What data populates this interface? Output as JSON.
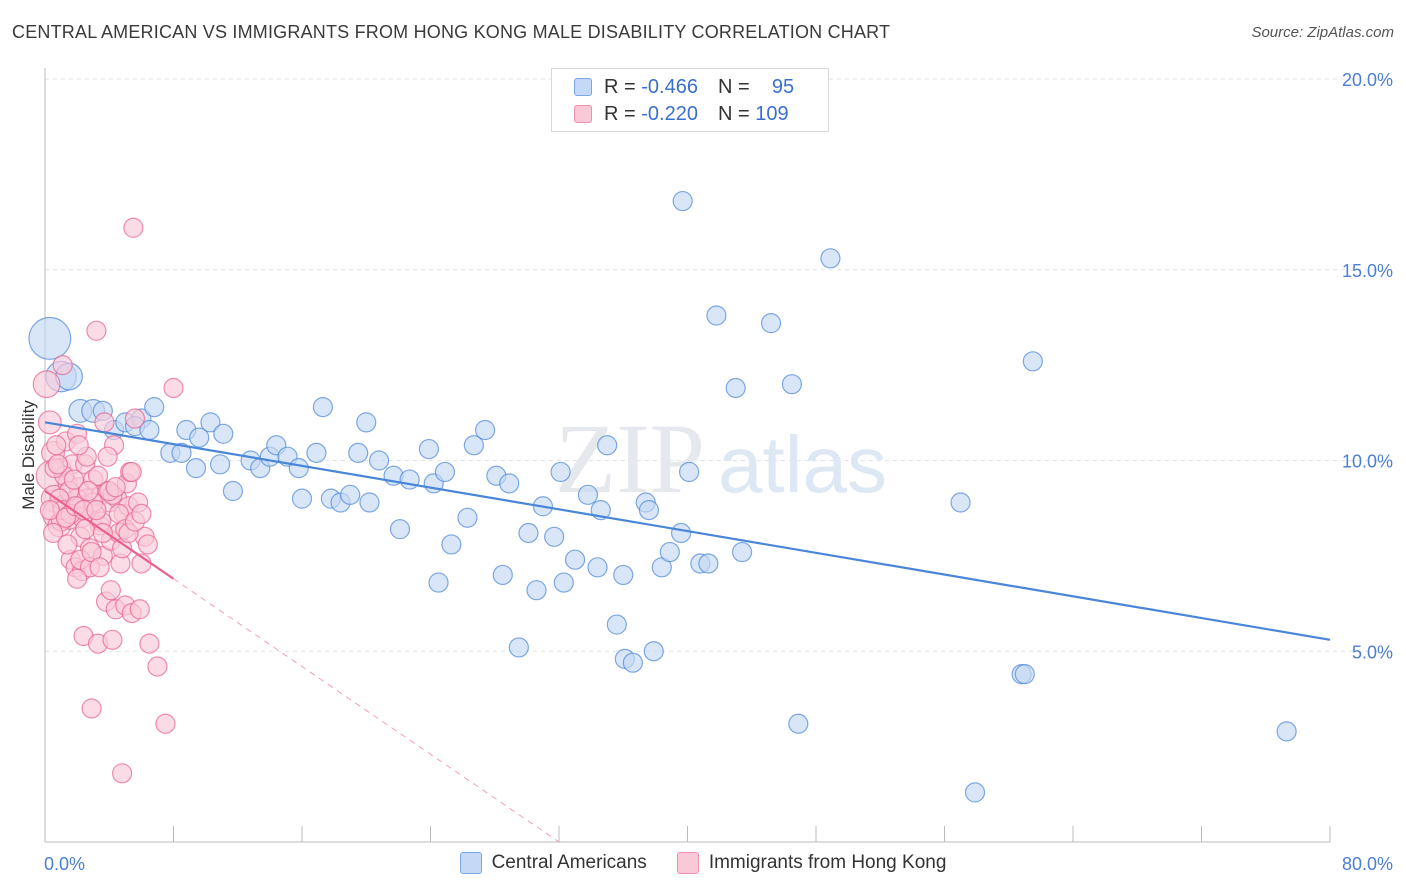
{
  "title": "CENTRAL AMERICAN VS IMMIGRANTS FROM HONG KONG MALE DISABILITY CORRELATION CHART",
  "source": "Source: ZipAtlas.com",
  "watermark": {
    "zip": "ZIP",
    "atlas": "atlas"
  },
  "legend": {
    "r_label": "R =",
    "n_label": "N =",
    "rows": [
      {
        "r": "-0.466",
        "n": "95",
        "color": "#7aa6e8",
        "fill": "#c5d8f5"
      },
      {
        "r": "-0.220",
        "n": "109",
        "color": "#f08fb0",
        "fill": "#f9c9d8"
      }
    ]
  },
  "bottom_legend": [
    {
      "label": "Central Americans",
      "fill": "#c5d8f5",
      "stroke": "#7aa6e8"
    },
    {
      "label": "Immigrants from Hong Kong",
      "fill": "#f9c9d8",
      "stroke": "#f08fb0"
    }
  ],
  "chart_data": {
    "type": "scatter",
    "title": "CENTRAL AMERICAN VS IMMIGRANTS FROM HONG KONG MALE DISABILITY CORRELATION CHART",
    "xlabel": "",
    "ylabel": "Male Disability",
    "xlim": [
      0,
      80
    ],
    "ylim": [
      0,
      20
    ],
    "x_tick_labels": [
      "0.0%",
      "80.0%"
    ],
    "y_tick_labels": [
      "5.0%",
      "10.0%",
      "15.0%",
      "20.0%"
    ],
    "y_ticks": [
      5,
      10,
      15,
      20
    ],
    "grid": "horizontal dashed",
    "legend_position": "top-center",
    "series": [
      {
        "name": "Central Americans",
        "color": "#4a86d8",
        "fill": "#c5d8f5",
        "trend": {
          "x0": 0,
          "y0": 11.0,
          "x1": 80,
          "y1": 5.3
        },
        "points": [
          [
            0.3,
            13.2,
            2.2
          ],
          [
            1.0,
            12.2,
            1.6
          ],
          [
            1.5,
            12.2,
            1.4
          ],
          [
            2.2,
            11.3,
            1.2
          ],
          [
            3.0,
            11.3,
            1.2
          ],
          [
            3.6,
            11.3,
            1.0
          ],
          [
            4.3,
            10.8,
            1.0
          ],
          [
            5.0,
            11.0,
            1.0
          ],
          [
            6.0,
            11.1,
            1.0
          ],
          [
            6.8,
            11.4,
            1.0
          ],
          [
            5.6,
            10.9,
            1.0
          ],
          [
            6.5,
            10.8,
            1.0
          ],
          [
            7.8,
            10.2,
            1.0
          ],
          [
            8.5,
            10.2,
            1.0
          ],
          [
            8.8,
            10.8,
            1.0
          ],
          [
            9.6,
            10.6,
            1.0
          ],
          [
            10.3,
            11.0,
            1.0
          ],
          [
            9.4,
            9.8,
            1.0
          ],
          [
            11.1,
            10.7,
            1.0
          ],
          [
            11.7,
            9.2,
            1.0
          ],
          [
            10.9,
            9.9,
            1.0
          ],
          [
            12.8,
            10.0,
            1.0
          ],
          [
            13.4,
            9.8,
            1.0
          ],
          [
            14.0,
            10.1,
            1.0
          ],
          [
            14.4,
            10.4,
            1.0
          ],
          [
            15.1,
            10.1,
            1.0
          ],
          [
            15.8,
            9.8,
            1.0
          ],
          [
            16.9,
            10.2,
            1.0
          ],
          [
            17.3,
            11.4,
            1.0
          ],
          [
            16.0,
            9.0,
            1.0
          ],
          [
            17.8,
            9.0,
            1.0
          ],
          [
            18.4,
            8.9,
            1.0
          ],
          [
            19.0,
            9.1,
            1.0
          ],
          [
            19.5,
            10.2,
            1.0
          ],
          [
            20.2,
            8.9,
            1.0
          ],
          [
            20.0,
            11.0,
            1.0
          ],
          [
            20.8,
            10.0,
            1.0
          ],
          [
            21.7,
            9.6,
            1.0
          ],
          [
            22.1,
            8.2,
            1.0
          ],
          [
            22.7,
            9.5,
            1.0
          ],
          [
            23.9,
            10.3,
            1.0
          ],
          [
            24.2,
            9.4,
            1.0
          ],
          [
            24.5,
            6.8,
            1.0
          ],
          [
            24.9,
            9.7,
            1.0
          ],
          [
            25.3,
            7.8,
            1.0
          ],
          [
            26.3,
            8.5,
            1.0
          ],
          [
            26.7,
            10.4,
            1.0
          ],
          [
            27.4,
            10.8,
            1.0
          ],
          [
            28.1,
            9.6,
            1.0
          ],
          [
            28.5,
            7.0,
            1.0
          ],
          [
            28.9,
            9.4,
            1.0
          ],
          [
            29.5,
            5.1,
            1.0
          ],
          [
            30.1,
            8.1,
            1.0
          ],
          [
            30.6,
            6.6,
            1.0
          ],
          [
            31.0,
            8.8,
            1.0
          ],
          [
            31.7,
            8.0,
            1.0
          ],
          [
            32.1,
            9.7,
            1.0
          ],
          [
            32.3,
            6.8,
            1.0
          ],
          [
            33.0,
            7.4,
            1.0
          ],
          [
            33.8,
            9.1,
            1.0
          ],
          [
            34.4,
            7.2,
            1.0
          ],
          [
            34.6,
            8.7,
            1.0
          ],
          [
            35.0,
            10.4,
            1.0
          ],
          [
            35.6,
            5.7,
            1.0
          ],
          [
            36.0,
            7.0,
            1.0
          ],
          [
            36.1,
            4.8,
            1.0
          ],
          [
            36.6,
            4.7,
            1.0
          ],
          [
            37.4,
            8.9,
            1.0
          ],
          [
            37.6,
            8.7,
            1.0
          ],
          [
            37.9,
            5.0,
            1.0
          ],
          [
            38.4,
            7.2,
            1.0
          ],
          [
            38.9,
            7.6,
            1.0
          ],
          [
            39.6,
            8.1,
            1.0
          ],
          [
            39.7,
            16.8,
            1.0
          ],
          [
            40.1,
            9.7,
            1.0
          ],
          [
            40.8,
            7.3,
            1.0
          ],
          [
            41.3,
            7.3,
            1.0
          ],
          [
            41.8,
            13.8,
            1.0
          ],
          [
            43.0,
            11.9,
            1.0
          ],
          [
            43.4,
            7.6,
            1.0
          ],
          [
            45.2,
            13.6,
            1.0
          ],
          [
            46.5,
            12.0,
            1.0
          ],
          [
            46.9,
            3.1,
            1.0
          ],
          [
            48.9,
            15.3,
            1.0
          ],
          [
            57.0,
            8.9,
            1.0
          ],
          [
            57.9,
            1.3,
            1.0
          ],
          [
            60.8,
            4.4,
            1.0
          ],
          [
            61.0,
            4.4,
            1.0
          ],
          [
            61.5,
            12.6,
            1.0
          ],
          [
            77.3,
            2.9,
            1.0
          ]
        ]
      },
      {
        "name": "Immigrants from Hong Kong",
        "color": "#e8608f",
        "fill": "#f9c9d8",
        "trend": {
          "x0": 0,
          "y0": 9.2,
          "x1": 8,
          "y1": 6.9
        },
        "trend_ext": {
          "x0": 8,
          "y0": 6.9,
          "x1": 32,
          "y1": 0
        },
        "points": [
          [
            0.1,
            12.0,
            1.4
          ],
          [
            0.3,
            11.0,
            1.2
          ],
          [
            0.5,
            10.2,
            1.2
          ],
          [
            0.4,
            9.6,
            1.6
          ],
          [
            0.6,
            9.0,
            1.4
          ],
          [
            0.8,
            8.6,
            1.6
          ],
          [
            0.9,
            8.3,
            1.2
          ],
          [
            1.0,
            9.8,
            1.0
          ],
          [
            1.1,
            12.5,
            1.0
          ],
          [
            1.2,
            8.8,
            1.2
          ],
          [
            1.3,
            10.5,
            1.0
          ],
          [
            1.4,
            9.4,
            1.0
          ],
          [
            1.5,
            8.5,
            1.2
          ],
          [
            1.6,
            7.4,
            1.0
          ],
          [
            1.7,
            9.9,
            1.0
          ],
          [
            1.8,
            8.7,
            1.0
          ],
          [
            1.9,
            7.2,
            1.0
          ],
          [
            2.0,
            10.7,
            1.0
          ],
          [
            2.1,
            9.3,
            1.0
          ],
          [
            2.2,
            8.0,
            1.0
          ],
          [
            2.3,
            7.1,
            1.0
          ],
          [
            2.4,
            5.4,
            1.0
          ],
          [
            2.5,
            9.9,
            1.0
          ],
          [
            2.6,
            9.0,
            1.0
          ],
          [
            2.7,
            8.8,
            1.0
          ],
          [
            2.8,
            7.7,
            1.0
          ],
          [
            2.9,
            3.5,
            1.0
          ],
          [
            3.0,
            9.5,
            1.0
          ],
          [
            3.1,
            8.6,
            1.0
          ],
          [
            3.2,
            13.4,
            1.0
          ],
          [
            3.3,
            5.2,
            1.0
          ],
          [
            3.4,
            8.3,
            1.0
          ],
          [
            3.5,
            9.1,
            1.0
          ],
          [
            3.6,
            7.5,
            1.0
          ],
          [
            3.7,
            11.0,
            1.0
          ],
          [
            3.8,
            6.3,
            1.0
          ],
          [
            3.9,
            9.2,
            1.0
          ],
          [
            4.0,
            8.9,
            1.0
          ],
          [
            4.1,
            7.9,
            1.0
          ],
          [
            4.2,
            5.3,
            1.0
          ],
          [
            4.3,
            10.4,
            1.0
          ],
          [
            4.4,
            6.1,
            1.0
          ],
          [
            4.5,
            9.0,
            1.0
          ],
          [
            4.6,
            8.1,
            1.0
          ],
          [
            4.7,
            7.3,
            1.0
          ],
          [
            4.8,
            1.8,
            1.0
          ],
          [
            4.9,
            8.6,
            1.0
          ],
          [
            5.0,
            6.2,
            1.0
          ],
          [
            5.1,
            9.4,
            1.0
          ],
          [
            5.2,
            8.8,
            1.0
          ],
          [
            5.3,
            9.7,
            1.0
          ],
          [
            5.4,
            6.0,
            1.0
          ],
          [
            5.5,
            16.1,
            1.0
          ],
          [
            5.6,
            11.1,
            1.0
          ],
          [
            5.8,
            8.9,
            1.0
          ],
          [
            5.9,
            6.1,
            1.0
          ],
          [
            6.0,
            7.3,
            1.0
          ],
          [
            6.2,
            8.0,
            1.0
          ],
          [
            6.5,
            5.2,
            1.0
          ],
          [
            7.0,
            4.6,
            1.0
          ],
          [
            7.5,
            3.1,
            1.0
          ],
          [
            8.0,
            11.9,
            1.0
          ],
          [
            1.0,
            8.4,
            1.0
          ],
          [
            1.2,
            9.6,
            1.0
          ],
          [
            2.0,
            9.0,
            1.0
          ],
          [
            2.3,
            8.5,
            1.0
          ],
          [
            2.6,
            10.1,
            1.0
          ],
          [
            3.0,
            8.9,
            1.0
          ],
          [
            3.3,
            9.6,
            1.0
          ],
          [
            1.5,
            9.2,
            1.0
          ],
          [
            0.7,
            10.4,
            1.0
          ],
          [
            0.9,
            9.0,
            1.0
          ],
          [
            1.1,
            8.7,
            1.0
          ],
          [
            1.6,
            8.6,
            1.0
          ],
          [
            1.8,
            9.5,
            1.0
          ],
          [
            2.2,
            7.4,
            1.0
          ],
          [
            2.5,
            8.2,
            1.0
          ],
          [
            2.8,
            7.2,
            1.0
          ],
          [
            3.5,
            8.4,
            1.0
          ],
          [
            3.9,
            10.1,
            1.0
          ],
          [
            4.2,
            9.1,
            1.0
          ],
          [
            4.6,
            8.6,
            1.0
          ],
          [
            5.0,
            8.2,
            1.0
          ],
          [
            5.4,
            9.7,
            1.0
          ],
          [
            0.3,
            8.7,
            1.0
          ],
          [
            0.5,
            8.1,
            1.0
          ],
          [
            0.6,
            9.8,
            1.0
          ],
          [
            0.8,
            9.9,
            1.0
          ],
          [
            1.3,
            8.5,
            1.0
          ],
          [
            1.9,
            8.8,
            1.0
          ],
          [
            2.1,
            10.4,
            1.0
          ],
          [
            2.4,
            8.7,
            1.0
          ],
          [
            2.7,
            9.2,
            1.0
          ],
          [
            3.2,
            8.7,
            1.0
          ],
          [
            3.6,
            8.1,
            1.0
          ],
          [
            4.0,
            9.2,
            1.0
          ],
          [
            4.4,
            9.3,
            1.0
          ],
          [
            4.8,
            7.7,
            1.0
          ],
          [
            5.2,
            8.1,
            1.0
          ],
          [
            5.6,
            8.4,
            1.0
          ],
          [
            6.0,
            8.6,
            1.0
          ],
          [
            6.4,
            7.8,
            1.0
          ],
          [
            1.4,
            7.8,
            1.0
          ],
          [
            2.0,
            6.9,
            1.0
          ],
          [
            2.9,
            7.6,
            1.0
          ],
          [
            3.4,
            7.2,
            1.0
          ],
          [
            4.1,
            6.6,
            1.0
          ]
        ]
      }
    ]
  }
}
